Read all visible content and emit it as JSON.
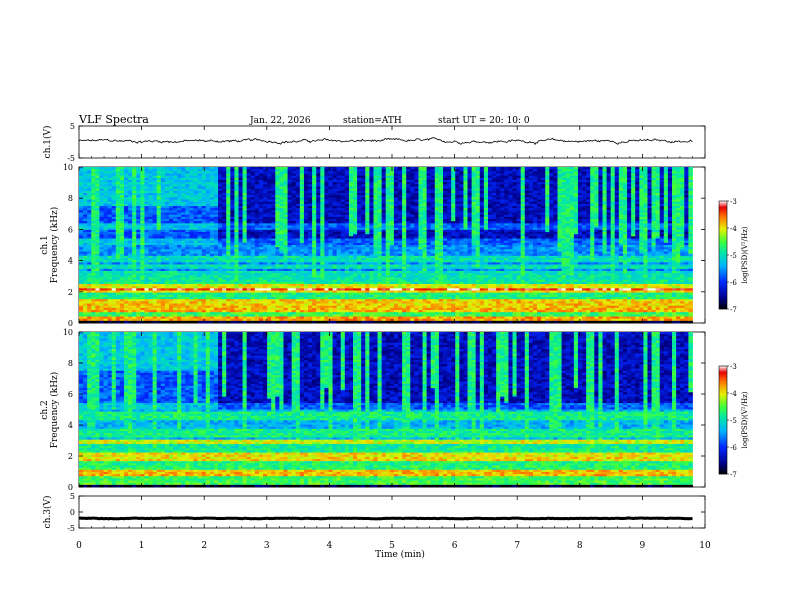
{
  "header": {
    "title": "VLF  Spectra",
    "date": "Jan. 22, 2026",
    "station": "station=ATH",
    "start": "start  UT  =   20: 10: 0"
  },
  "chart_data": [
    {
      "id": "ch1-waveform",
      "type": "line",
      "ylabel": "ch.1(V)",
      "ylim": [
        -5,
        5
      ],
      "yticks": [
        "5",
        "-5"
      ],
      "x_range_min": [
        0,
        9.8
      ],
      "baseline_mean": 0.3,
      "noise_amplitude": 0.8,
      "color": "#000000"
    },
    {
      "id": "ch1-spectrogram",
      "type": "heatmap",
      "ylabel": "ch.1\nFrequency  (kHz)",
      "ylim": [
        0,
        10
      ],
      "yticks": [
        "0",
        "2",
        "4",
        "6",
        "8",
        "10"
      ],
      "x_range_min": [
        0,
        9.8
      ],
      "transition_min": 2.25,
      "colorbar": {
        "label": "log(PSD)(V²/Hz)",
        "range": [
          -7,
          -3
        ],
        "ticks": [
          "-3",
          "-4",
          "-5",
          "-6",
          "-7"
        ]
      },
      "bands_khz": [
        0.25,
        0.9,
        1.3,
        2.1,
        2.3,
        3.2,
        3.6,
        4.1,
        5.2,
        6.2
      ]
    },
    {
      "id": "ch2-spectrogram",
      "type": "heatmap",
      "ylabel": "ch.2\nFrequency  (kHz)",
      "ylim": [
        0,
        10
      ],
      "yticks": [
        "0",
        "2",
        "4",
        "6",
        "8",
        "10"
      ],
      "x_range_min": [
        0,
        9.8
      ],
      "transition_min": 2.25,
      "colorbar": {
        "label": "log(PSD)(V²/Hz)",
        "range": [
          -7,
          -3
        ],
        "ticks": [
          "-3",
          "-4",
          "-5",
          "-6",
          "-7"
        ]
      },
      "bands_khz": [
        0.9,
        1.8,
        2.1,
        2.9,
        3.3,
        3.6,
        4.4,
        4.7,
        5.2
      ]
    },
    {
      "id": "ch3-waveform",
      "type": "line",
      "ylabel": "ch.3(V)",
      "ylim": [
        -5,
        5
      ],
      "yticks": [
        "5",
        "0",
        "-5"
      ],
      "x_range_min": [
        0,
        9.8
      ],
      "baseline_mean": -2.0,
      "noise_amplitude": 0.15,
      "color": "#000000"
    }
  ],
  "xaxis": {
    "label": "Time  (min)",
    "range": [
      0,
      10
    ],
    "ticks": [
      "0",
      "1",
      "2",
      "3",
      "4",
      "5",
      "6",
      "7",
      "8",
      "9",
      "10"
    ]
  }
}
